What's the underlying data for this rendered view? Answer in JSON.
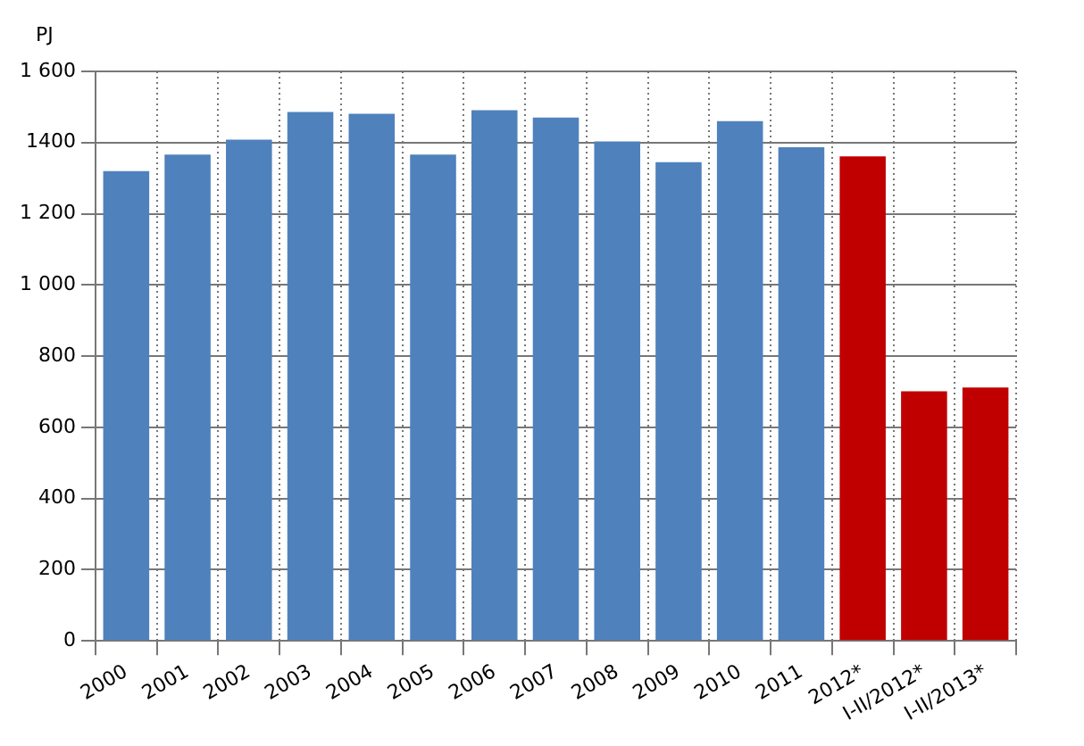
{
  "chart_data": {
    "type": "bar",
    "ylabel": "PJ",
    "categories": [
      "2000",
      "2001",
      "2002",
      "2003",
      "2004",
      "2005",
      "2006",
      "2007",
      "2008",
      "2009",
      "2010",
      "2011",
      "2012*",
      "I-II/2012*",
      "I-II/2013*"
    ],
    "values": [
      1320,
      1366,
      1408,
      1486,
      1481,
      1366,
      1491,
      1470,
      1403,
      1345,
      1460,
      1387,
      1361,
      701,
      712
    ],
    "colors": [
      "#4f81bd",
      "#4f81bd",
      "#4f81bd",
      "#4f81bd",
      "#4f81bd",
      "#4f81bd",
      "#4f81bd",
      "#4f81bd",
      "#4f81bd",
      "#4f81bd",
      "#4f81bd",
      "#4f81bd",
      "#c00000",
      "#c00000",
      "#c00000"
    ],
    "ylim": [
      0,
      1600
    ],
    "yticks": [
      0,
      200,
      400,
      600,
      800,
      {
        "value": 1000,
        "label": "1 000"
      },
      {
        "value": 1200,
        "label": "1 200"
      },
      {
        "value": 1400,
        "label": "1400"
      },
      {
        "value": 1600,
        "label": "1 600"
      }
    ],
    "grid": true,
    "legend": false
  }
}
